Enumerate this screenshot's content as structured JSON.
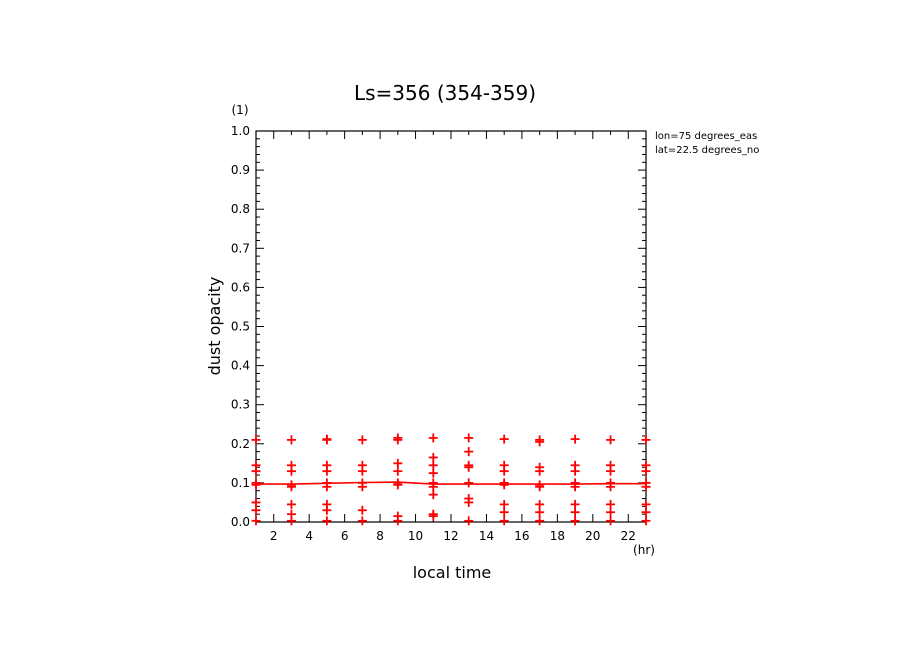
{
  "chart_data": {
    "type": "scatter",
    "title": "Ls=356 (354-359)",
    "xlabel": "local time",
    "ylabel": "dust opacity",
    "x_unit": "(hr)",
    "y_unit": "(1)",
    "xlim": [
      1,
      23
    ],
    "ylim": [
      0,
      1
    ],
    "x_ticks": [
      "2",
      "4",
      "6",
      "8",
      "10",
      "12",
      "14",
      "16",
      "18",
      "20",
      "22"
    ],
    "y_ticks": [
      "0.0",
      "0.1",
      "0.2",
      "0.3",
      "0.4",
      "0.5",
      "0.6",
      "0.7",
      "0.8",
      "0.9",
      "1.0"
    ],
    "annotations": [
      "lon=75 degrees_eas",
      "lat=22.5 degrees_no"
    ],
    "grid": false,
    "series": [
      {
        "type": "scatter",
        "color": "#ff0000",
        "marker": "plus",
        "points": [
          [
            1,
            0.21
          ],
          [
            1,
            0.145
          ],
          [
            1,
            0.13
          ],
          [
            1,
            0.1
          ],
          [
            1,
            0.095
          ],
          [
            1,
            0.05
          ],
          [
            1,
            0.03
          ],
          [
            1,
            0.003
          ],
          [
            3,
            0.21
          ],
          [
            3,
            0.145
          ],
          [
            3,
            0.13
          ],
          [
            3,
            0.095
          ],
          [
            3,
            0.09
          ],
          [
            3,
            0.045
          ],
          [
            3,
            0.02
          ],
          [
            3,
            0.003
          ],
          [
            5,
            0.21
          ],
          [
            5,
            0.212
          ],
          [
            5,
            0.145
          ],
          [
            5,
            0.13
          ],
          [
            5,
            0.1
          ],
          [
            5,
            0.09
          ],
          [
            5,
            0.045
          ],
          [
            5,
            0.03
          ],
          [
            5,
            0.003
          ],
          [
            7,
            0.21
          ],
          [
            7,
            0.145
          ],
          [
            7,
            0.13
          ],
          [
            7,
            0.1
          ],
          [
            7,
            0.09
          ],
          [
            7,
            0.03
          ],
          [
            7,
            0.003
          ],
          [
            9,
            0.215
          ],
          [
            9,
            0.21
          ],
          [
            9,
            0.15
          ],
          [
            9,
            0.13
          ],
          [
            9,
            0.1
          ],
          [
            9,
            0.095
          ],
          [
            9,
            0.015
          ],
          [
            9,
            0.003
          ],
          [
            11,
            0.215
          ],
          [
            11,
            0.165
          ],
          [
            11,
            0.145
          ],
          [
            11,
            0.125
          ],
          [
            11,
            0.1
          ],
          [
            11,
            0.09
          ],
          [
            11,
            0.07
          ],
          [
            11,
            0.02
          ],
          [
            11,
            0.015
          ],
          [
            13,
            0.215
          ],
          [
            13,
            0.18
          ],
          [
            13,
            0.145
          ],
          [
            13,
            0.14
          ],
          [
            13,
            0.1
          ],
          [
            13,
            0.06
          ],
          [
            13,
            0.05
          ],
          [
            13,
            0.003
          ],
          [
            15,
            0.212
          ],
          [
            15,
            0.145
          ],
          [
            15,
            0.13
          ],
          [
            15,
            0.1
          ],
          [
            15,
            0.095
          ],
          [
            15,
            0.045
          ],
          [
            15,
            0.025
          ],
          [
            15,
            0.003
          ],
          [
            17,
            0.21
          ],
          [
            17,
            0.205
          ],
          [
            17,
            0.14
          ],
          [
            17,
            0.13
          ],
          [
            17,
            0.095
          ],
          [
            17,
            0.09
          ],
          [
            17,
            0.045
          ],
          [
            17,
            0.025
          ],
          [
            17,
            0.003
          ],
          [
            19,
            0.212
          ],
          [
            19,
            0.145
          ],
          [
            19,
            0.13
          ],
          [
            19,
            0.1
          ],
          [
            19,
            0.09
          ],
          [
            19,
            0.045
          ],
          [
            19,
            0.025
          ],
          [
            19,
            0.003
          ],
          [
            21,
            0.21
          ],
          [
            21,
            0.145
          ],
          [
            21,
            0.13
          ],
          [
            21,
            0.1
          ],
          [
            21,
            0.09
          ],
          [
            21,
            0.045
          ],
          [
            21,
            0.025
          ],
          [
            21,
            0.003
          ],
          [
            23,
            0.21
          ],
          [
            23,
            0.145
          ],
          [
            23,
            0.13
          ],
          [
            23,
            0.1
          ],
          [
            23,
            0.09
          ],
          [
            23,
            0.045
          ],
          [
            23,
            0.025
          ],
          [
            23,
            0.003
          ]
        ]
      },
      {
        "type": "line",
        "color": "#ff0000",
        "x": [
          1,
          3,
          5,
          7,
          9,
          11,
          13,
          15,
          17,
          19,
          21,
          23
        ],
        "y": [
          0.097,
          0.097,
          0.099,
          0.101,
          0.102,
          0.097,
          0.097,
          0.097,
          0.097,
          0.097,
          0.098,
          0.098
        ]
      }
    ]
  }
}
